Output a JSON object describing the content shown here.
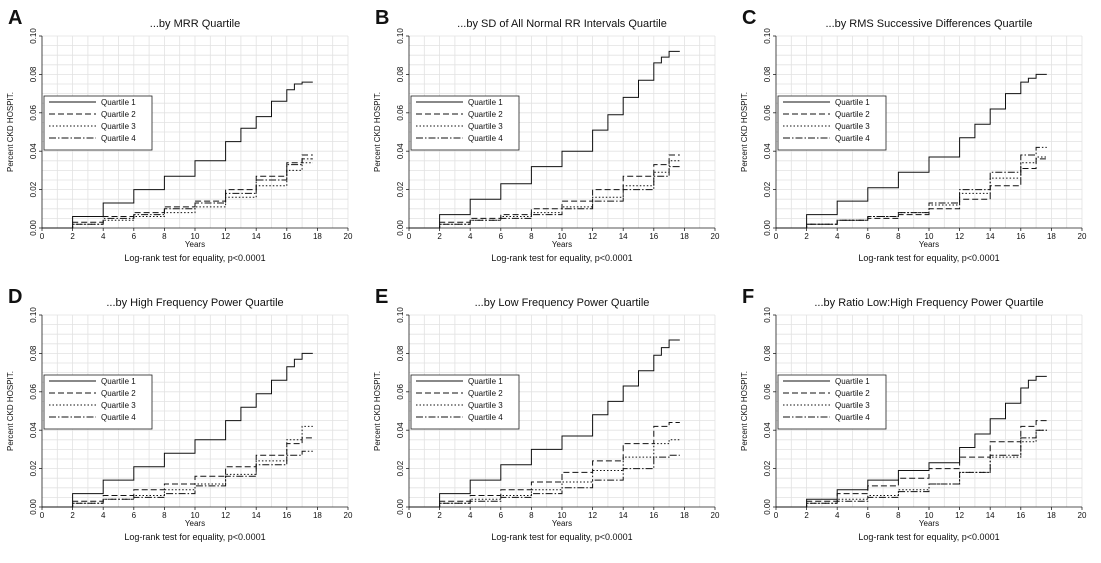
{
  "chart_data": [
    {
      "type": "line",
      "letter": "A",
      "title": "...by MRR Quartile",
      "xlabel": "Years",
      "ylabel": "Percent CKD HOSPIT.",
      "xlim": [
        0,
        20
      ],
      "ylim": [
        0,
        0.1
      ],
      "xticks": [
        0,
        2,
        4,
        6,
        8,
        10,
        12,
        14,
        16,
        18,
        20
      ],
      "yticks": [
        "0.00",
        "0.02",
        "0.04",
        "0.06",
        "0.08",
        "0.10"
      ],
      "grid": true,
      "legend_placement": "left-middle",
      "footer": "Log-rank test for equality, p<0.0001",
      "series": [
        {
          "name": "Quartile 1",
          "dash": "solid",
          "x": [
            0,
            2,
            4,
            6,
            8,
            10,
            12,
            13,
            14,
            15,
            16,
            16.5,
            17,
            17.7
          ],
          "y": [
            0,
            0.006,
            0.013,
            0.02,
            0.027,
            0.035,
            0.045,
            0.052,
            0.058,
            0.066,
            0.072,
            0.075,
            0.076,
            0.076
          ]
        },
        {
          "name": "Quartile 2",
          "dash": "dash",
          "x": [
            0,
            2,
            4,
            6,
            8,
            10,
            12,
            14,
            16,
            17,
            17.7
          ],
          "y": [
            0,
            0.003,
            0.006,
            0.008,
            0.011,
            0.014,
            0.02,
            0.027,
            0.034,
            0.038,
            0.038
          ]
        },
        {
          "name": "Quartile 3",
          "dash": "dot",
          "x": [
            0,
            2,
            4,
            6,
            8,
            10,
            12,
            14,
            16,
            17,
            17.7
          ],
          "y": [
            0,
            0.002,
            0.004,
            0.006,
            0.008,
            0.011,
            0.016,
            0.022,
            0.03,
            0.034,
            0.034
          ]
        },
        {
          "name": "Quartile 4",
          "dash": "dashdot",
          "x": [
            0,
            2,
            4,
            6,
            8,
            10,
            12,
            14,
            16,
            17,
            17.7
          ],
          "y": [
            0,
            0.002,
            0.005,
            0.007,
            0.01,
            0.013,
            0.018,
            0.025,
            0.033,
            0.036,
            0.036
          ]
        }
      ]
    },
    {
      "type": "line",
      "letter": "B",
      "title": "...by SD of All Normal RR Intervals Quartile",
      "xlabel": "Years",
      "ylabel": "Percent CKD HOSPIT.",
      "xlim": [
        0,
        20
      ],
      "ylim": [
        0,
        0.1
      ],
      "xticks": [
        0,
        2,
        4,
        6,
        8,
        10,
        12,
        14,
        16,
        18,
        20
      ],
      "yticks": [
        "0.00",
        "0.02",
        "0.04",
        "0.06",
        "0.08",
        "0.10"
      ],
      "grid": true,
      "legend_placement": "left-middle",
      "footer": "Log-rank test for equality, p<0.0001",
      "series": [
        {
          "name": "Quartile 1",
          "dash": "solid",
          "x": [
            0,
            2,
            4,
            6,
            8,
            10,
            12,
            13,
            14,
            15,
            16,
            16.5,
            17,
            17.7
          ],
          "y": [
            0,
            0.007,
            0.015,
            0.023,
            0.032,
            0.04,
            0.051,
            0.059,
            0.068,
            0.077,
            0.086,
            0.089,
            0.092,
            0.092
          ]
        },
        {
          "name": "Quartile 2",
          "dash": "dash",
          "x": [
            0,
            2,
            4,
            6,
            8,
            10,
            12,
            14,
            16,
            17,
            17.7
          ],
          "y": [
            0,
            0.003,
            0.005,
            0.007,
            0.01,
            0.014,
            0.02,
            0.027,
            0.033,
            0.038,
            0.038
          ]
        },
        {
          "name": "Quartile 3",
          "dash": "dot",
          "x": [
            0,
            2,
            4,
            6,
            8,
            10,
            12,
            14,
            16,
            17,
            17.7
          ],
          "y": [
            0,
            0.002,
            0.004,
            0.006,
            0.008,
            0.011,
            0.016,
            0.022,
            0.029,
            0.035,
            0.035
          ]
        },
        {
          "name": "Quartile 4",
          "dash": "dashdot",
          "x": [
            0,
            2,
            4,
            6,
            8,
            10,
            12,
            14,
            16,
            17,
            17.7
          ],
          "y": [
            0,
            0.002,
            0.004,
            0.005,
            0.007,
            0.01,
            0.014,
            0.02,
            0.027,
            0.032,
            0.032
          ]
        }
      ]
    },
    {
      "type": "line",
      "letter": "C",
      "title": "...by RMS Successive Differences Quartile",
      "xlabel": "Years",
      "ylabel": "Percent CKD HOSPIT.",
      "xlim": [
        0,
        20
      ],
      "ylim": [
        0,
        0.1
      ],
      "xticks": [
        0,
        2,
        4,
        6,
        8,
        10,
        12,
        14,
        16,
        18,
        20
      ],
      "yticks": [
        "0.00",
        "0.02",
        "0.04",
        "0.06",
        "0.08",
        "0.10"
      ],
      "grid": true,
      "legend_placement": "left-middle",
      "footer": "Log-rank test for equality, p<0.0001",
      "series": [
        {
          "name": "Quartile 1",
          "dash": "solid",
          "x": [
            0,
            2,
            4,
            6,
            8,
            10,
            12,
            13,
            14,
            15,
            16,
            16.5,
            17,
            17.7
          ],
          "y": [
            0,
            0.007,
            0.014,
            0.021,
            0.029,
            0.037,
            0.047,
            0.054,
            0.062,
            0.07,
            0.076,
            0.078,
            0.08,
            0.08
          ]
        },
        {
          "name": "Quartile 2",
          "dash": "dash",
          "x": [
            0,
            2,
            4,
            6,
            8,
            10,
            12,
            14,
            16,
            17,
            17.7
          ],
          "y": [
            0,
            0.002,
            0.004,
            0.005,
            0.007,
            0.01,
            0.015,
            0.022,
            0.031,
            0.036,
            0.036
          ]
        },
        {
          "name": "Quartile 3",
          "dash": "dot",
          "x": [
            0,
            2,
            4,
            6,
            8,
            10,
            12,
            14,
            16,
            17,
            17.7
          ],
          "y": [
            0,
            0.002,
            0.004,
            0.006,
            0.008,
            0.012,
            0.018,
            0.026,
            0.034,
            0.037,
            0.037
          ]
        },
        {
          "name": "Quartile 4",
          "dash": "dashdot",
          "x": [
            0,
            2,
            4,
            6,
            8,
            10,
            12,
            14,
            16,
            17,
            17.7
          ],
          "y": [
            0,
            0.002,
            0.004,
            0.006,
            0.008,
            0.013,
            0.02,
            0.029,
            0.038,
            0.042,
            0.042
          ]
        }
      ]
    },
    {
      "type": "line",
      "letter": "D",
      "title": "...by High Frequency Power Quartile",
      "xlabel": "Years",
      "ylabel": "Percent CKD HOSPIT.",
      "xlim": [
        0,
        20
      ],
      "ylim": [
        0,
        0.1
      ],
      "xticks": [
        0,
        2,
        4,
        6,
        8,
        10,
        12,
        14,
        16,
        18,
        20
      ],
      "yticks": [
        "0.00",
        "0.02",
        "0.04",
        "0.06",
        "0.08",
        "0.10"
      ],
      "grid": true,
      "legend_placement": "left-middle",
      "footer": "Log-rank test for equality, p<0.0001",
      "series": [
        {
          "name": "Quartile 1",
          "dash": "solid",
          "x": [
            0,
            2,
            4,
            6,
            8,
            10,
            12,
            13,
            14,
            15,
            16,
            16.5,
            17,
            17.7
          ],
          "y": [
            0,
            0.007,
            0.014,
            0.021,
            0.028,
            0.035,
            0.045,
            0.052,
            0.059,
            0.066,
            0.073,
            0.077,
            0.08,
            0.08
          ]
        },
        {
          "name": "Quartile 2",
          "dash": "dash",
          "x": [
            0,
            2,
            4,
            6,
            8,
            10,
            12,
            14,
            16,
            17,
            17.7
          ],
          "y": [
            0,
            0.003,
            0.006,
            0.009,
            0.012,
            0.016,
            0.021,
            0.027,
            0.033,
            0.036,
            0.036
          ]
        },
        {
          "name": "Quartile 3",
          "dash": "dot",
          "x": [
            0,
            2,
            4,
            6,
            8,
            10,
            12,
            14,
            16,
            17,
            17.7
          ],
          "y": [
            0,
            0.002,
            0.004,
            0.006,
            0.009,
            0.012,
            0.017,
            0.024,
            0.035,
            0.042,
            0.042
          ]
        },
        {
          "name": "Quartile 4",
          "dash": "dashdot",
          "x": [
            0,
            2,
            4,
            6,
            8,
            10,
            12,
            14,
            16,
            17,
            17.7
          ],
          "y": [
            0,
            0.002,
            0.004,
            0.005,
            0.007,
            0.011,
            0.016,
            0.022,
            0.027,
            0.029,
            0.029
          ]
        }
      ]
    },
    {
      "type": "line",
      "letter": "E",
      "title": "...by Low Frequency Power Quartile",
      "xlabel": "Years",
      "ylabel": "Percent CKD HOSPIT.",
      "xlim": [
        0,
        20
      ],
      "ylim": [
        0,
        0.1
      ],
      "xticks": [
        0,
        2,
        4,
        6,
        8,
        10,
        12,
        14,
        16,
        18,
        20
      ],
      "yticks": [
        "0.00",
        "0.02",
        "0.04",
        "0.06",
        "0.08",
        "0.10"
      ],
      "grid": true,
      "legend_placement": "left-middle",
      "footer": "Log-rank test for equality, p<0.0001",
      "series": [
        {
          "name": "Quartile 1",
          "dash": "solid",
          "x": [
            0,
            2,
            4,
            6,
            8,
            10,
            12,
            13,
            14,
            15,
            16,
            16.5,
            17,
            17.7
          ],
          "y": [
            0,
            0.007,
            0.014,
            0.022,
            0.03,
            0.037,
            0.048,
            0.055,
            0.063,
            0.071,
            0.079,
            0.083,
            0.087,
            0.087
          ]
        },
        {
          "name": "Quartile 2",
          "dash": "dash",
          "x": [
            0,
            2,
            4,
            6,
            8,
            10,
            12,
            14,
            16,
            17,
            17.7
          ],
          "y": [
            0,
            0.003,
            0.006,
            0.009,
            0.013,
            0.018,
            0.024,
            0.033,
            0.042,
            0.044,
            0.044
          ]
        },
        {
          "name": "Quartile 3",
          "dash": "dot",
          "x": [
            0,
            2,
            4,
            6,
            8,
            10,
            12,
            14,
            16,
            17,
            17.7
          ],
          "y": [
            0,
            0.002,
            0.004,
            0.006,
            0.009,
            0.013,
            0.019,
            0.026,
            0.033,
            0.035,
            0.035
          ]
        },
        {
          "name": "Quartile 4",
          "dash": "dashdot",
          "x": [
            0,
            2,
            4,
            6,
            8,
            10,
            12,
            14,
            16,
            17,
            17.7
          ],
          "y": [
            0,
            0.002,
            0.003,
            0.005,
            0.007,
            0.01,
            0.014,
            0.02,
            0.026,
            0.027,
            0.027
          ]
        }
      ]
    },
    {
      "type": "line",
      "letter": "F",
      "title": "...by Ratio Low:High Frequency Power Quartile",
      "xlabel": "Years",
      "ylabel": "Percent CKD HOSPIT.",
      "xlim": [
        0,
        20
      ],
      "ylim": [
        0,
        0.1
      ],
      "xticks": [
        0,
        2,
        4,
        6,
        8,
        10,
        12,
        14,
        16,
        18,
        20
      ],
      "yticks": [
        "0.00",
        "0.02",
        "0.04",
        "0.06",
        "0.08",
        "0.10"
      ],
      "grid": true,
      "legend_placement": "left-middle",
      "footer": "Log-rank test for equality, p<0.0001",
      "series": [
        {
          "name": "Quartile 1",
          "dash": "solid",
          "x": [
            0,
            2,
            4,
            6,
            8,
            10,
            12,
            13,
            14,
            15,
            16,
            16.5,
            17,
            17.7
          ],
          "y": [
            0,
            0.004,
            0.009,
            0.014,
            0.019,
            0.023,
            0.031,
            0.038,
            0.046,
            0.054,
            0.062,
            0.066,
            0.068,
            0.068
          ]
        },
        {
          "name": "Quartile 2",
          "dash": "dash",
          "x": [
            0,
            2,
            4,
            6,
            8,
            10,
            12,
            14,
            16,
            17,
            17.7
          ],
          "y": [
            0,
            0.003,
            0.007,
            0.011,
            0.015,
            0.02,
            0.026,
            0.034,
            0.042,
            0.045,
            0.045
          ]
        },
        {
          "name": "Quartile 3",
          "dash": "dot",
          "x": [
            0,
            2,
            4,
            6,
            8,
            10,
            12,
            14,
            16,
            17,
            17.7
          ],
          "y": [
            0,
            0.002,
            0.004,
            0.006,
            0.009,
            0.012,
            0.018,
            0.026,
            0.034,
            0.04,
            0.04
          ]
        },
        {
          "name": "Quartile 4",
          "dash": "dashdot",
          "x": [
            0,
            2,
            4,
            6,
            8,
            10,
            12,
            14,
            16,
            17,
            17.7
          ],
          "y": [
            0,
            0.002,
            0.003,
            0.005,
            0.008,
            0.012,
            0.018,
            0.027,
            0.036,
            0.04,
            0.04
          ]
        }
      ]
    }
  ]
}
